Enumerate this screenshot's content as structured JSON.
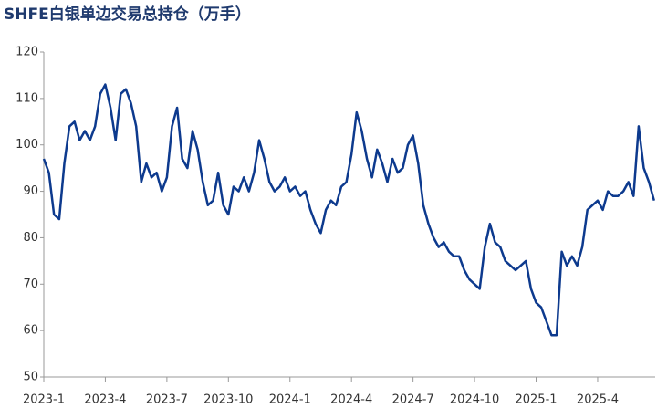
{
  "chart_data": {
    "type": "line",
    "title": "SHFE白银单边交易总持仓（万手）",
    "categories": [
      "2023-1",
      null,
      null,
      null,
      null,
      null,
      null,
      null,
      null,
      null,
      null,
      null,
      "2023-4",
      null,
      null,
      null,
      null,
      null,
      null,
      null,
      null,
      null,
      null,
      null,
      "2023-7",
      null,
      null,
      null,
      null,
      null,
      null,
      null,
      null,
      null,
      null,
      null,
      "2023-10",
      null,
      null,
      null,
      null,
      null,
      null,
      null,
      null,
      null,
      null,
      null,
      "2024-1",
      null,
      null,
      null,
      null,
      null,
      null,
      null,
      null,
      null,
      null,
      null,
      "2024-4",
      null,
      null,
      null,
      null,
      null,
      null,
      null,
      null,
      null,
      null,
      null,
      "2024-7",
      null,
      null,
      null,
      null,
      null,
      null,
      null,
      null,
      null,
      null,
      null,
      "2024-10",
      null,
      null,
      null,
      null,
      null,
      null,
      null,
      null,
      null,
      null,
      null,
      "2025-1",
      null,
      null,
      null,
      null,
      null,
      null,
      null,
      null,
      null,
      null,
      null,
      "2025-4",
      null,
      null,
      null,
      null,
      null,
      null,
      null,
      null,
      null,
      null,
      null
    ],
    "values": [
      97,
      94,
      85,
      84,
      96,
      104,
      105,
      101,
      103,
      101,
      104,
      111,
      113,
      108,
      101,
      111,
      112,
      109,
      104,
      92,
      96,
      93,
      94,
      90,
      93,
      104,
      108,
      97,
      95,
      103,
      99,
      92,
      87,
      88,
      94,
      87,
      85,
      91,
      90,
      93,
      90,
      94,
      101,
      97,
      92,
      90,
      91,
      93,
      90,
      91,
      89,
      90,
      86,
      83,
      81,
      86,
      88,
      87,
      91,
      92,
      98,
      107,
      103,
      97,
      93,
      99,
      96,
      92,
      97,
      94,
      95,
      100,
      102,
      96,
      87,
      83,
      80,
      78,
      79,
      77,
      76,
      76,
      73,
      71,
      70,
      69,
      78,
      83,
      79,
      78,
      75,
      74,
      73,
      74,
      75,
      69,
      66,
      65,
      62,
      59,
      59,
      77,
      74,
      76,
      74,
      78,
      86,
      87,
      88,
      86,
      90,
      89,
      89,
      90,
      92,
      89,
      104,
      95,
      92,
      88
    ],
    "color": "#0d3a8e",
    "ylim": [
      50,
      120
    ],
    "yticks": [
      50,
      60,
      70,
      80,
      90,
      100,
      110,
      120
    ]
  }
}
